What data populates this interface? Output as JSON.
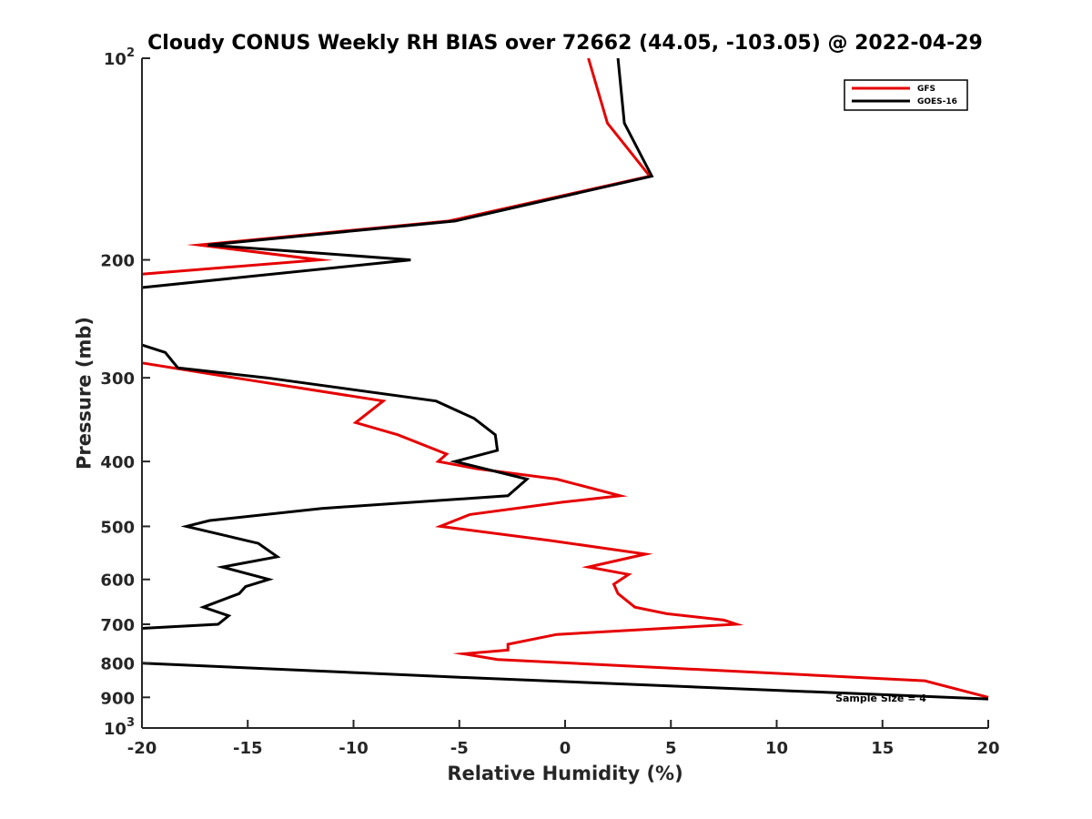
{
  "chart_data": {
    "type": "line",
    "title": "Cloudy CONUS Weekly RH BIAS over 72662 (44.05, -103.05) @ 2022-04-29",
    "xlabel": "Relative Humidity (%)",
    "ylabel": "Pressure (mb)",
    "xlim": [
      -20,
      20
    ],
    "ylim": [
      100,
      1000
    ],
    "yscale": "log",
    "y_reversed": true,
    "xticks": [
      -20,
      -15,
      -10,
      -5,
      0,
      5,
      10,
      15,
      20
    ],
    "xtick_labels": [
      "-20",
      "-15",
      "-10",
      "-5",
      "0",
      "5",
      "10",
      "15",
      "20"
    ],
    "yticks": [
      100,
      200,
      300,
      400,
      500,
      600,
      700,
      800,
      900,
      1000
    ],
    "ytick_labels": [
      {
        "base": "10",
        "exp": "2"
      },
      {
        "base": "200",
        "exp": ""
      },
      {
        "base": "300",
        "exp": ""
      },
      {
        "base": "400",
        "exp": ""
      },
      {
        "base": "500",
        "exp": ""
      },
      {
        "base": "600",
        "exp": ""
      },
      {
        "base": "700",
        "exp": ""
      },
      {
        "base": "800",
        "exp": ""
      },
      {
        "base": "900",
        "exp": ""
      },
      {
        "base": "10",
        "exp": "3"
      }
    ],
    "grid": false,
    "legend_position": "top-right",
    "annotation": "Sample Size = 4",
    "series": [
      {
        "name": "GFS",
        "color": "#e60000",
        "segments": [
          [
            [
              1.1,
              100
            ],
            [
              2.0,
              125
            ],
            [
              4.0,
              150
            ],
            [
              -5.5,
              175
            ],
            [
              -17.3,
              190
            ],
            [
              -11.6,
              200
            ],
            [
              -20.0,
              210
            ]
          ],
          [
            [
              -20.0,
              285
            ],
            [
              -15.6,
              300
            ],
            [
              -8.6,
              325
            ],
            [
              -9.9,
              350
            ],
            [
              -7.9,
              365
            ],
            [
              -5.6,
              390
            ],
            [
              -6.0,
              400
            ],
            [
              -4.2,
              410
            ],
            [
              -0.4,
              425
            ],
            [
              2.6,
              450
            ],
            [
              -0.1,
              460
            ],
            [
              -4.5,
              480
            ],
            [
              -5.9,
              500
            ],
            [
              -0.7,
              525
            ],
            [
              3.8,
              550
            ],
            [
              1.1,
              575
            ],
            [
              3.0,
              590
            ],
            [
              2.3,
              610
            ],
            [
              2.5,
              630
            ],
            [
              3.3,
              660
            ],
            [
              4.8,
              675
            ],
            [
              7.5,
              690
            ],
            [
              8.1,
              700
            ],
            [
              -0.4,
              725
            ],
            [
              -2.7,
              750
            ],
            [
              -2.7,
              765
            ],
            [
              -4.8,
              775
            ],
            [
              -3.2,
              790
            ],
            [
              17.0,
              850
            ],
            [
              20.0,
              900
            ]
          ]
        ]
      },
      {
        "name": "GOES-16",
        "color": "#000000",
        "segments": [
          [
            [
              2.5,
              100
            ],
            [
              2.8,
              125
            ],
            [
              4.1,
              150
            ],
            [
              -5.2,
              175
            ],
            [
              -16.9,
              190
            ],
            [
              -7.3,
              200
            ],
            [
              -20.0,
              220
            ]
          ],
          [
            [
              -20.0,
              268
            ],
            [
              -18.9,
              275
            ],
            [
              -18.3,
              290
            ],
            [
              -14.1,
              300
            ],
            [
              -6.1,
              325
            ],
            [
              -4.3,
              345
            ],
            [
              -3.3,
              365
            ],
            [
              -3.2,
              385
            ],
            [
              -5.2,
              400
            ],
            [
              -1.8,
              425
            ],
            [
              -2.7,
              450
            ],
            [
              -11.5,
              470
            ],
            [
              -16.8,
              490
            ],
            [
              -17.9,
              500
            ],
            [
              -14.5,
              530
            ],
            [
              -13.6,
              555
            ],
            [
              -16.2,
              575
            ],
            [
              -14.0,
              600
            ],
            [
              -15.1,
              615
            ],
            [
              -15.4,
              630
            ],
            [
              -17.1,
              660
            ],
            [
              -15.9,
              680
            ],
            [
              -16.4,
              700
            ],
            [
              -20.0,
              710
            ]
          ],
          [
            [
              -20.0,
              800
            ],
            [
              -5.0,
              840
            ],
            [
              20.0,
              905
            ]
          ]
        ]
      }
    ]
  }
}
